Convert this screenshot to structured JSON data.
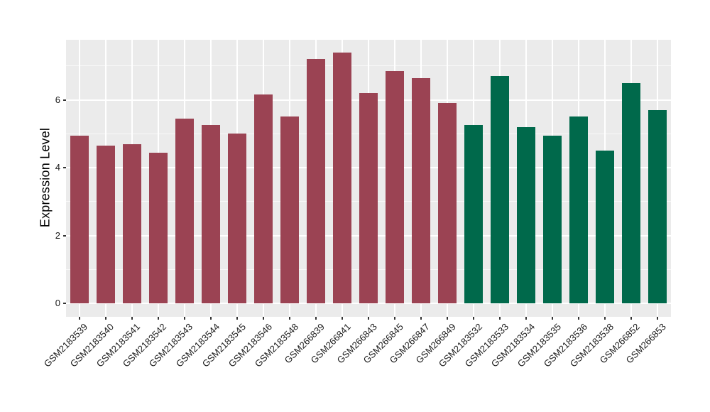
{
  "chart_data": {
    "type": "bar",
    "title": "",
    "xlabel": "",
    "ylabel": "Expression Level",
    "categories": [
      "GSM2183539",
      "GSM2183540",
      "GSM2183541",
      "GSM2183542",
      "GSM2183543",
      "GSM2183544",
      "GSM2183545",
      "GSM2183546",
      "GSM2183548",
      "GSM266839",
      "GSM266841",
      "GSM266843",
      "GSM266845",
      "GSM266847",
      "GSM266849",
      "GSM2183532",
      "GSM2183533",
      "GSM2183534",
      "GSM2183535",
      "GSM2183536",
      "GSM2183538",
      "GSM266852",
      "GSM266853"
    ],
    "values": [
      4.95,
      4.65,
      4.7,
      4.45,
      5.45,
      5.25,
      5.0,
      6.15,
      5.5,
      7.2,
      7.4,
      6.2,
      6.85,
      6.65,
      5.9,
      5.25,
      6.7,
      5.2,
      4.95,
      5.5,
      4.5,
      6.5,
      5.7
    ],
    "groups": [
      "group1",
      "group1",
      "group1",
      "group1",
      "group1",
      "group1",
      "group1",
      "group1",
      "group1",
      "group1",
      "group1",
      "group1",
      "group1",
      "group1",
      "group1",
      "group2",
      "group2",
      "group2",
      "group2",
      "group2",
      "group2",
      "group2",
      "group2"
    ],
    "group_colors": {
      "group1": "#9B4353",
      "group2": "#00694B"
    },
    "yticks": [
      0,
      2,
      4,
      6
    ],
    "yticks_minor": [
      1,
      3,
      5,
      7
    ],
    "ylim": [
      -0.39,
      7.77
    ],
    "grid": true,
    "legend": "none",
    "panel_background": "#EBEBEB",
    "grid_major_color": "#FFFFFF",
    "grid_minor_color": "rgba(255,255,255,0.65)",
    "tick_mark_color": "#333333",
    "text_color": "#1A1A1A"
  }
}
